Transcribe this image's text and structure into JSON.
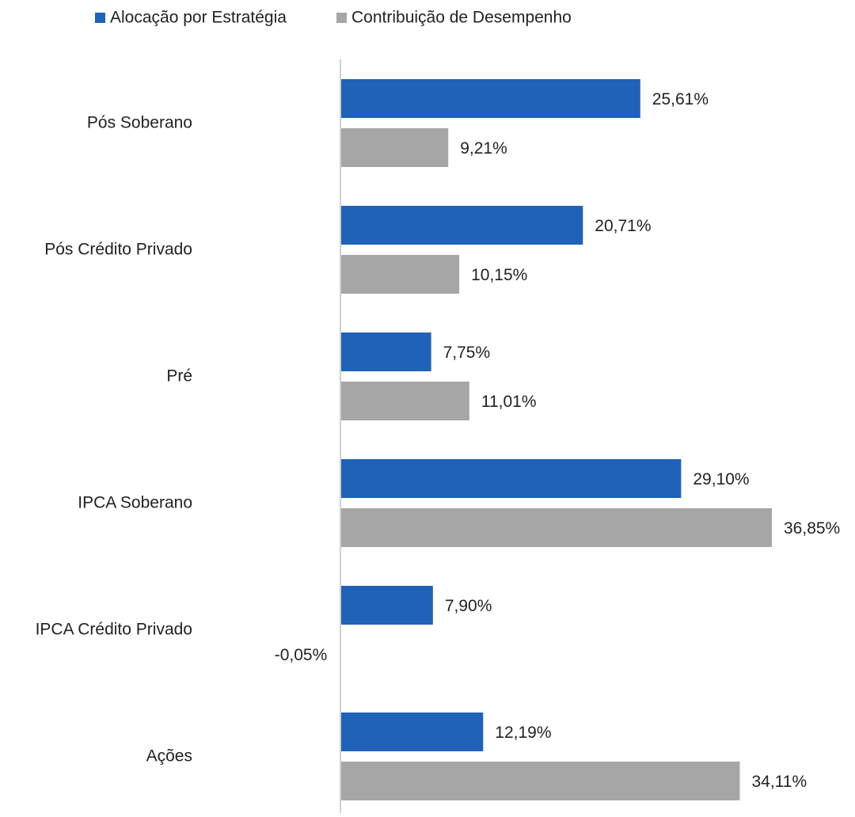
{
  "chart_data": {
    "type": "bar",
    "categories": [
      "Pós Soberano",
      "Pós Crédito Privado",
      "Pré",
      "IPCA Soberano",
      "IPCA Crédito Privado",
      "Ações"
    ],
    "series": [
      {
        "name": "Alocação por Estratégia",
        "color": "#1f62b8",
        "values": [
          25.61,
          20.71,
          7.75,
          29.1,
          7.9,
          12.19
        ],
        "value_labels": [
          "25,61%",
          "20,71%",
          "7,75%",
          "29,10%",
          "7,90%",
          "12,19%"
        ]
      },
      {
        "name": "Contribuição de Desempenho",
        "color": "#a6a6a6",
        "values": [
          9.21,
          10.15,
          11.01,
          36.85,
          -0.05,
          34.11
        ],
        "value_labels": [
          "9,21%",
          "10,15%",
          "11,01%",
          "36,85%",
          "-0,05%",
          "34,11%"
        ]
      }
    ]
  }
}
